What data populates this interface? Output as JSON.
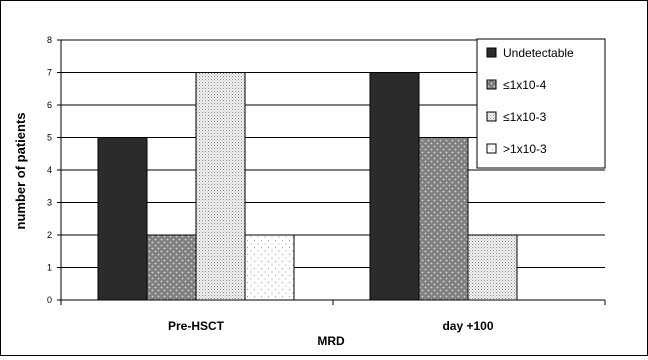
{
  "chart_data": {
    "type": "bar",
    "title": "",
    "xlabel": "MRD",
    "ylabel": "number of patients",
    "ylim": [
      0,
      8
    ],
    "yticks": [
      0,
      1,
      2,
      3,
      4,
      5,
      6,
      7,
      8
    ],
    "grid": "horizontal",
    "legend_position": "top-right",
    "categories": [
      "Pre-HSCT",
      "day +100"
    ],
    "series": [
      {
        "name": "Undetectable",
        "values": [
          5,
          7
        ],
        "color": "#2b2b2b",
        "pattern": "solid"
      },
      {
        "name": "≤1x10-4",
        "values": [
          2,
          5
        ],
        "color": "#808080",
        "pattern": "dots-white-on-gray"
      },
      {
        "name": "≤1x10-3",
        "values": [
          7,
          2
        ],
        "color": "#e0e0e0",
        "pattern": "fine-dots"
      },
      {
        "name": ">1x10-3",
        "values": [
          2,
          0
        ],
        "color": "#ffffff",
        "pattern": "sparse-dots"
      }
    ]
  }
}
